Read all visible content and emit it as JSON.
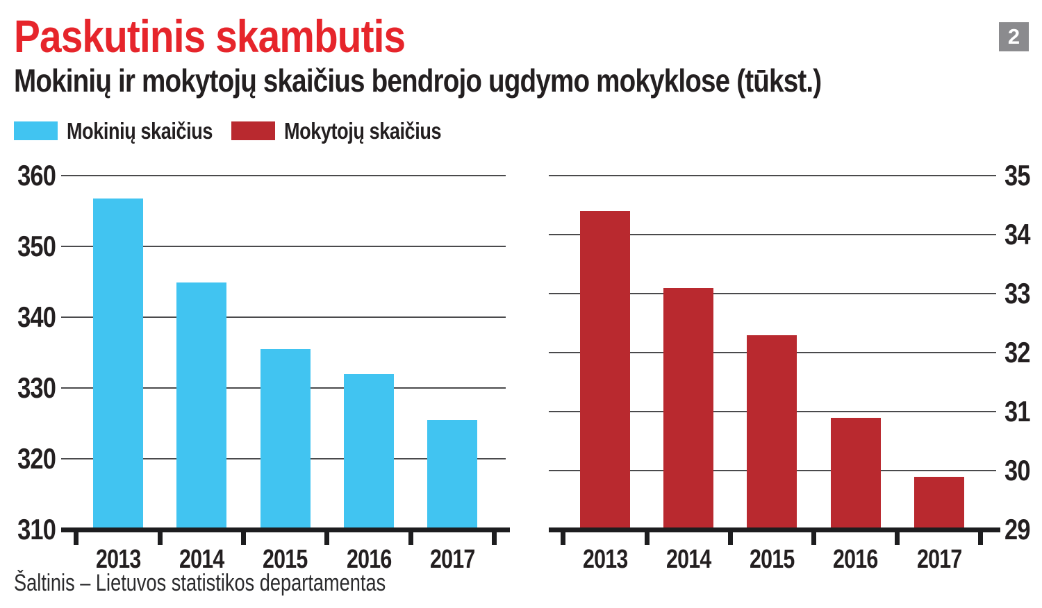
{
  "page": {
    "title": "Paskutinis skambutis",
    "subtitle": "Mokinių ir mokytojų skaičius bendrojo ugdymo mokyklose (tūkst.)",
    "page_number_badge": "2",
    "source": "Šaltinis – Lietuvos statistikos departamentas"
  },
  "legend": {
    "position": "top-left",
    "items": [
      {
        "label": "Mokinių skaičius",
        "color": "#41c4f1"
      },
      {
        "label": "Mokytojų skaičius",
        "color": "#b9292f"
      }
    ]
  },
  "colors": {
    "title_red": "#e6252b",
    "students_cyan": "#41c4f1",
    "teachers_dark_red": "#b9292f",
    "text_dark": "#231f20",
    "gridline_gray": "#4a4a4c",
    "axis_black": "#1d1d1f",
    "badge_gray": "#8b8b8e",
    "background": "#ffffff"
  },
  "chart_data": [
    {
      "type": "bar",
      "title": "Mokinių skaičius",
      "unit": "tūkst.",
      "categories": [
        "2013",
        "2014",
        "2015",
        "2016",
        "2017"
      ],
      "values": [
        356.8,
        344.9,
        335.5,
        332.0,
        325.5
      ],
      "color": "#41c4f1",
      "ylim": [
        310,
        360
      ],
      "yticks": [
        310,
        320,
        330,
        340,
        350,
        360
      ],
      "axis_side": "left",
      "grid": true,
      "xlabel": "",
      "ylabel": ""
    },
    {
      "type": "bar",
      "title": "Mokytojų skaičius",
      "unit": "tūkst.",
      "categories": [
        "2013",
        "2014",
        "2015",
        "2016",
        "2017"
      ],
      "values": [
        34.4,
        33.1,
        32.3,
        30.9,
        29.9
      ],
      "color": "#b9292f",
      "ylim": [
        29,
        35
      ],
      "yticks": [
        29,
        30,
        31,
        32,
        33,
        34,
        35
      ],
      "axis_side": "right",
      "grid": true,
      "xlabel": "",
      "ylabel": ""
    }
  ]
}
